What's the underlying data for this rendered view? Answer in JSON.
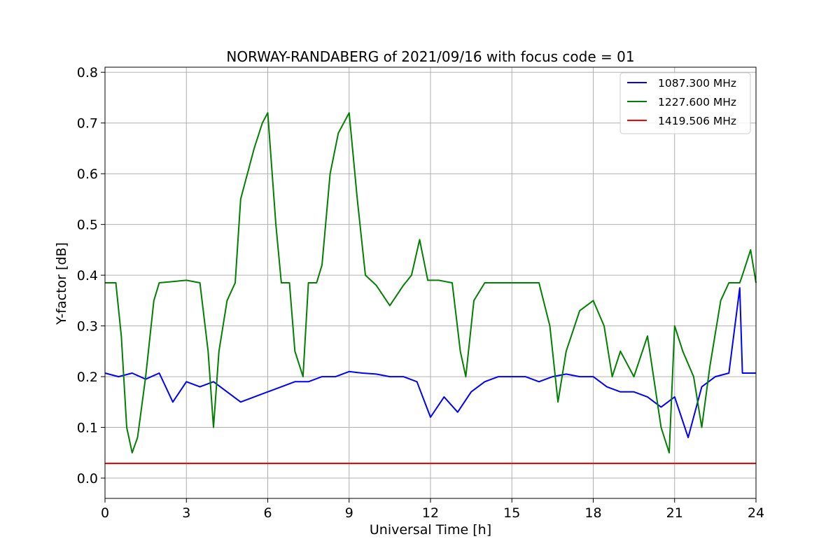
{
  "chart_data": {
    "type": "line",
    "title": "NORWAY-RANDABERG of 2021/09/16 with focus code = 01",
    "xlabel": "Universal Time [h]",
    "ylabel": "Y-factor [dB]",
    "xlim": [
      0,
      24
    ],
    "ylim": [
      -0.04,
      0.81
    ],
    "xticks": [
      0,
      3,
      6,
      9,
      12,
      15,
      18,
      21,
      24
    ],
    "xtick_labels": [
      "0",
      "3",
      "6",
      "9",
      "12",
      "15",
      "18",
      "21",
      "24"
    ],
    "yticks": [
      0.0,
      0.1,
      0.2,
      0.3,
      0.4,
      0.5,
      0.6,
      0.7,
      0.8
    ],
    "ytick_labels": [
      "0.0",
      "0.1",
      "0.2",
      "0.3",
      "0.4",
      "0.5",
      "0.6",
      "0.7",
      "0.8"
    ],
    "grid": true,
    "legend_position": "top-right",
    "series": [
      {
        "name": "1087.300 MHz",
        "color": "#0000ff",
        "x": [
          0,
          0.5,
          1.0,
          1.5,
          2.0,
          2.5,
          3.0,
          3.5,
          4.0,
          4.5,
          5.0,
          5.5,
          6.0,
          6.5,
          7.0,
          7.5,
          8.0,
          8.5,
          9.0,
          9.5,
          10.0,
          10.5,
          11.0,
          11.5,
          12.0,
          12.5,
          13.0,
          13.5,
          14.0,
          14.5,
          15.0,
          15.5,
          16.0,
          16.5,
          17.0,
          17.5,
          18.0,
          18.5,
          19.0,
          19.5,
          20.0,
          20.5,
          21.0,
          21.5,
          22.0,
          22.5,
          23.0,
          23.4,
          23.5,
          24.0
        ],
        "y": [
          0.207,
          0.2,
          0.207,
          0.195,
          0.207,
          0.15,
          0.19,
          0.18,
          0.19,
          0.17,
          0.15,
          0.16,
          0.17,
          0.18,
          0.19,
          0.19,
          0.2,
          0.2,
          0.21,
          0.207,
          0.205,
          0.2,
          0.2,
          0.19,
          0.12,
          0.16,
          0.13,
          0.17,
          0.19,
          0.2,
          0.2,
          0.2,
          0.19,
          0.2,
          0.205,
          0.2,
          0.2,
          0.18,
          0.17,
          0.17,
          0.16,
          0.14,
          0.16,
          0.08,
          0.18,
          0.2,
          0.207,
          0.375,
          0.207,
          0.207
        ]
      },
      {
        "name": "1227.600 MHz",
        "color": "#008000",
        "x": [
          0,
          0.4,
          0.6,
          0.8,
          1.0,
          1.2,
          1.5,
          1.8,
          2.0,
          3.0,
          3.5,
          3.8,
          4.0,
          4.2,
          4.5,
          4.8,
          5.0,
          5.5,
          5.8,
          6.0,
          6.3,
          6.5,
          6.8,
          7.0,
          7.3,
          7.5,
          7.8,
          8.0,
          8.3,
          8.6,
          9.0,
          9.3,
          9.6,
          10.0,
          10.5,
          11.0,
          11.3,
          11.6,
          11.9,
          12.3,
          12.8,
          13.1,
          13.3,
          13.6,
          14.0,
          15.0,
          15.5,
          16.0,
          16.4,
          16.7,
          17.0,
          17.5,
          18.0,
          18.4,
          18.7,
          19.0,
          19.5,
          20.0,
          20.5,
          20.8,
          21.0,
          21.3,
          21.7,
          22.0,
          22.3,
          22.7,
          23.0,
          23.4,
          23.5,
          23.8,
          24.0
        ],
        "y": [
          0.385,
          0.385,
          0.28,
          0.1,
          0.05,
          0.08,
          0.2,
          0.35,
          0.385,
          0.39,
          0.385,
          0.25,
          0.1,
          0.25,
          0.35,
          0.385,
          0.55,
          0.65,
          0.7,
          0.72,
          0.5,
          0.385,
          0.385,
          0.25,
          0.2,
          0.385,
          0.385,
          0.42,
          0.6,
          0.68,
          0.72,
          0.55,
          0.4,
          0.38,
          0.34,
          0.38,
          0.4,
          0.47,
          0.39,
          0.39,
          0.385,
          0.25,
          0.2,
          0.35,
          0.385,
          0.385,
          0.385,
          0.385,
          0.3,
          0.15,
          0.25,
          0.33,
          0.35,
          0.3,
          0.2,
          0.25,
          0.2,
          0.28,
          0.1,
          0.05,
          0.3,
          0.25,
          0.2,
          0.1,
          0.22,
          0.35,
          0.385,
          0.385,
          0.4,
          0.45,
          0.385
        ]
      },
      {
        "name": "1419.506 MHz",
        "color": "#ff0000",
        "x": [
          0,
          24
        ],
        "y": [
          0.029,
          0.029
        ]
      }
    ]
  }
}
